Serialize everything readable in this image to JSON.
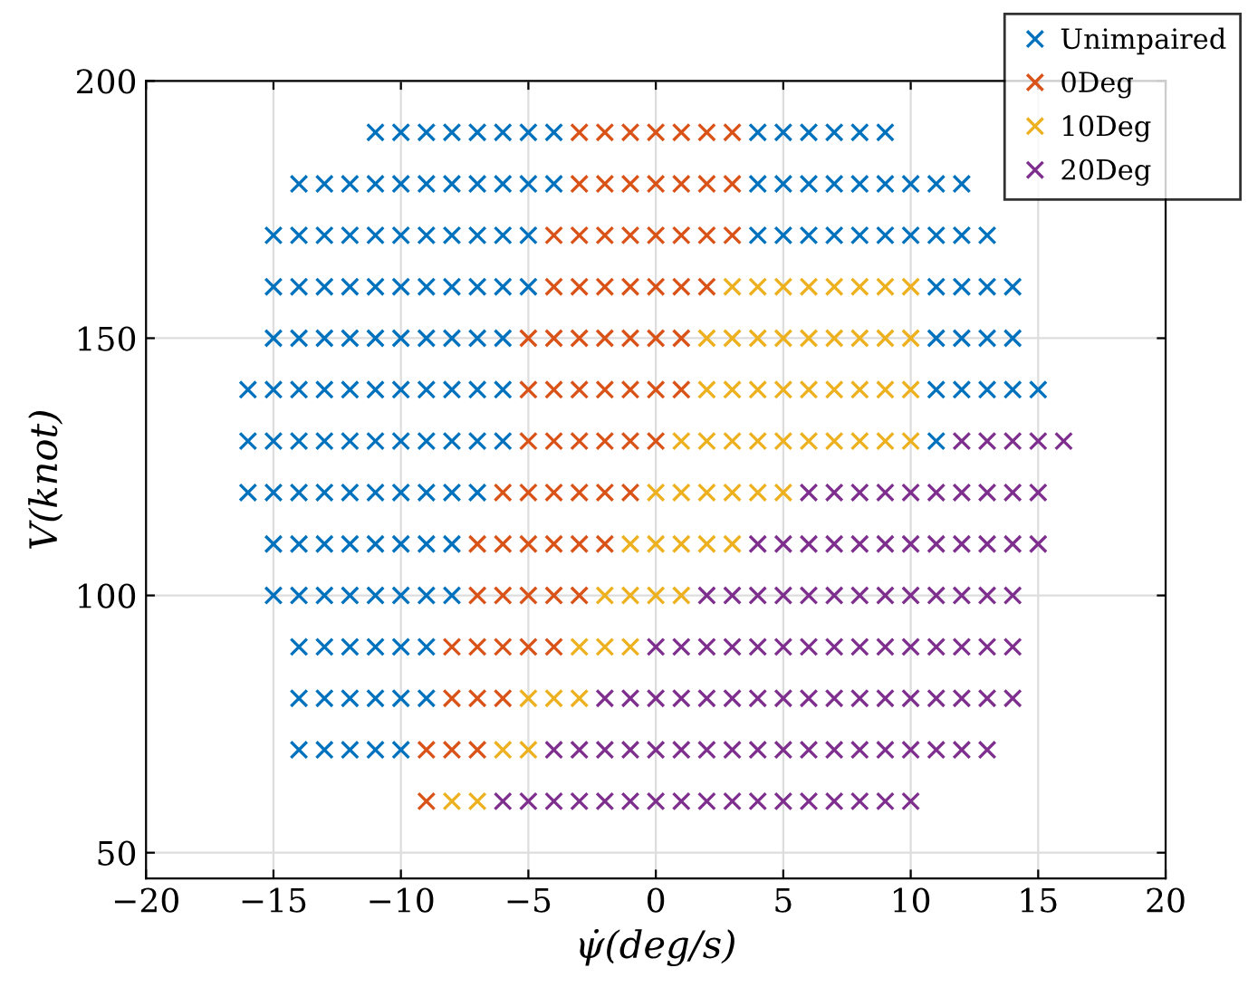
{
  "chart_data": {
    "type": "scatter",
    "xlabel": "ψ̇(deg/s)",
    "ylabel": "V(knot)",
    "xlim": [
      -20,
      20
    ],
    "xticks": [
      -20,
      -15,
      -10,
      -5,
      0,
      5,
      10,
      15,
      20
    ],
    "ylim": [
      45,
      200
    ],
    "yticks": [
      50,
      100,
      150,
      200
    ],
    "grid": true,
    "legend": "top right",
    "marker": "cross",
    "series": [
      {
        "name": "Unimpaired",
        "color": "#0072bd",
        "x": [
          -11,
          -10,
          -9,
          -8,
          -7,
          -6,
          -5,
          -4,
          4,
          5,
          6,
          7,
          8,
          9,
          -14,
          -13,
          -12,
          -11,
          -10,
          -9,
          -8,
          -7,
          -6,
          -5,
          -4,
          4,
          5,
          6,
          7,
          8,
          9,
          10,
          11,
          12,
          -15,
          -14,
          -13,
          -12,
          -11,
          -10,
          -9,
          -8,
          -7,
          -6,
          -5,
          4,
          5,
          6,
          7,
          8,
          9,
          10,
          11,
          12,
          13,
          -15,
          -14,
          -13,
          -12,
          -11,
          -10,
          -9,
          -8,
          -7,
          -6,
          -5,
          11,
          12,
          13,
          14,
          -15,
          -14,
          -13,
          -12,
          -11,
          -10,
          -9,
          -8,
          -7,
          -6,
          11,
          12,
          13,
          14,
          -16,
          -15,
          -14,
          -13,
          -12,
          -11,
          -10,
          -9,
          -8,
          -7,
          -6,
          11,
          12,
          13,
          14,
          15,
          -16,
          -15,
          -14,
          -13,
          -12,
          -11,
          -10,
          -9,
          -8,
          -7,
          -6,
          11,
          -16,
          -15,
          -14,
          -13,
          -12,
          -11,
          -10,
          -9,
          -8,
          -7,
          -15,
          -14,
          -13,
          -12,
          -11,
          -10,
          -9,
          -8,
          -15,
          -14,
          -13,
          -12,
          -11,
          -10,
          -9,
          -8,
          -14,
          -13,
          -12,
          -11,
          -10,
          -9,
          -14,
          -13,
          -12,
          -11,
          -10,
          -9,
          -14,
          -13,
          -12,
          -11,
          -10
        ],
        "values": [
          190,
          190,
          190,
          190,
          190,
          190,
          190,
          190,
          190,
          190,
          190,
          190,
          190,
          190,
          180,
          180,
          180,
          180,
          180,
          180,
          180,
          180,
          180,
          180,
          180,
          180,
          180,
          180,
          180,
          180,
          180,
          180,
          180,
          180,
          170,
          170,
          170,
          170,
          170,
          170,
          170,
          170,
          170,
          170,
          170,
          170,
          170,
          170,
          170,
          170,
          170,
          170,
          170,
          170,
          170,
          160,
          160,
          160,
          160,
          160,
          160,
          160,
          160,
          160,
          160,
          160,
          160,
          160,
          160,
          160,
          150,
          150,
          150,
          150,
          150,
          150,
          150,
          150,
          150,
          150,
          150,
          150,
          150,
          150,
          140,
          140,
          140,
          140,
          140,
          140,
          140,
          140,
          140,
          140,
          140,
          140,
          140,
          140,
          140,
          140,
          130,
          130,
          130,
          130,
          130,
          130,
          130,
          130,
          130,
          130,
          130,
          130,
          120,
          120,
          120,
          120,
          120,
          120,
          120,
          120,
          120,
          120,
          110,
          110,
          110,
          110,
          110,
          110,
          110,
          110,
          100,
          100,
          100,
          100,
          100,
          100,
          100,
          100,
          90,
          90,
          90,
          90,
          90,
          90,
          80,
          80,
          80,
          80,
          80,
          80,
          70,
          70,
          70,
          70,
          70
        ]
      },
      {
        "name": "0Deg",
        "color": "#d95319",
        "x": [
          -3,
          -2,
          -1,
          0,
          1,
          2,
          3,
          -3,
          -2,
          -1,
          0,
          1,
          2,
          3,
          -4,
          -3,
          -2,
          -1,
          0,
          1,
          2,
          3,
          -4,
          -3,
          -2,
          -1,
          0,
          1,
          2,
          -5,
          -4,
          -3,
          -2,
          -1,
          0,
          1,
          -5,
          -4,
          -3,
          -2,
          -1,
          0,
          1,
          -5,
          -4,
          -3,
          -2,
          -1,
          0,
          -6,
          -5,
          -4,
          -3,
          -2,
          -1,
          -7,
          -6,
          -5,
          -4,
          -3,
          -2,
          -7,
          -6,
          -5,
          -4,
          -3,
          -8,
          -7,
          -6,
          -5,
          -4,
          -8,
          -7,
          -6,
          -9,
          -8,
          -7,
          -9
        ],
        "values": [
          190,
          190,
          190,
          190,
          190,
          190,
          190,
          180,
          180,
          180,
          180,
          180,
          180,
          180,
          170,
          170,
          170,
          170,
          170,
          170,
          170,
          170,
          160,
          160,
          160,
          160,
          160,
          160,
          160,
          150,
          150,
          150,
          150,
          150,
          150,
          150,
          140,
          140,
          140,
          140,
          140,
          140,
          140,
          130,
          130,
          130,
          130,
          130,
          130,
          120,
          120,
          120,
          120,
          120,
          120,
          110,
          110,
          110,
          110,
          110,
          110,
          100,
          100,
          100,
          100,
          100,
          90,
          90,
          90,
          90,
          90,
          80,
          80,
          80,
          70,
          70,
          70,
          60
        ]
      },
      {
        "name": "10Deg",
        "color": "#edb120",
        "x": [
          3,
          4,
          5,
          6,
          7,
          8,
          9,
          10,
          2,
          3,
          4,
          5,
          6,
          7,
          8,
          9,
          10,
          2,
          3,
          4,
          5,
          6,
          7,
          8,
          9,
          10,
          1,
          2,
          3,
          4,
          5,
          6,
          7,
          8,
          9,
          10,
          0,
          1,
          2,
          3,
          4,
          5,
          -1,
          0,
          1,
          2,
          3,
          -2,
          -1,
          0,
          1,
          -3,
          -2,
          -1,
          -5,
          -4,
          -3,
          -6,
          -5,
          -8,
          -7
        ],
        "values": [
          160,
          160,
          160,
          160,
          160,
          160,
          160,
          160,
          150,
          150,
          150,
          150,
          150,
          150,
          150,
          150,
          150,
          140,
          140,
          140,
          140,
          140,
          140,
          140,
          140,
          140,
          130,
          130,
          130,
          130,
          130,
          130,
          130,
          130,
          130,
          130,
          120,
          120,
          120,
          120,
          120,
          120,
          110,
          110,
          110,
          110,
          110,
          100,
          100,
          100,
          100,
          90,
          90,
          90,
          80,
          80,
          80,
          70,
          70,
          60,
          60
        ]
      },
      {
        "name": "20Deg",
        "color": "#7e2f8e",
        "x": [
          12,
          13,
          14,
          15,
          16,
          6,
          7,
          8,
          9,
          10,
          11,
          12,
          13,
          14,
          15,
          4,
          5,
          6,
          7,
          8,
          9,
          10,
          11,
          12,
          13,
          14,
          15,
          2,
          3,
          4,
          5,
          6,
          7,
          8,
          9,
          10,
          11,
          12,
          13,
          14,
          0,
          1,
          2,
          3,
          4,
          5,
          6,
          7,
          8,
          9,
          10,
          11,
          12,
          13,
          14,
          -2,
          -1,
          0,
          1,
          2,
          3,
          4,
          5,
          6,
          7,
          8,
          9,
          10,
          11,
          12,
          13,
          14,
          -4,
          -3,
          -2,
          -1,
          0,
          1,
          2,
          3,
          4,
          5,
          6,
          7,
          8,
          9,
          10,
          11,
          12,
          13,
          -6,
          -5,
          -4,
          -3,
          -2,
          -1,
          0,
          1,
          2,
          3,
          4,
          5,
          6,
          7,
          8,
          9,
          10
        ],
        "values": [
          130,
          130,
          130,
          130,
          130,
          120,
          120,
          120,
          120,
          120,
          120,
          120,
          120,
          120,
          120,
          110,
          110,
          110,
          110,
          110,
          110,
          110,
          110,
          110,
          110,
          110,
          110,
          100,
          100,
          100,
          100,
          100,
          100,
          100,
          100,
          100,
          100,
          100,
          100,
          100,
          90,
          90,
          90,
          90,
          90,
          90,
          90,
          90,
          90,
          90,
          90,
          90,
          90,
          90,
          90,
          80,
          80,
          80,
          80,
          80,
          80,
          80,
          80,
          80,
          80,
          80,
          80,
          80,
          80,
          80,
          80,
          80,
          70,
          70,
          70,
          70,
          70,
          70,
          70,
          70,
          70,
          70,
          70,
          70,
          70,
          70,
          70,
          70,
          70,
          70,
          60,
          60,
          60,
          60,
          60,
          60,
          60,
          60,
          60,
          60,
          60,
          60,
          60,
          60,
          60,
          60,
          60
        ]
      }
    ]
  }
}
